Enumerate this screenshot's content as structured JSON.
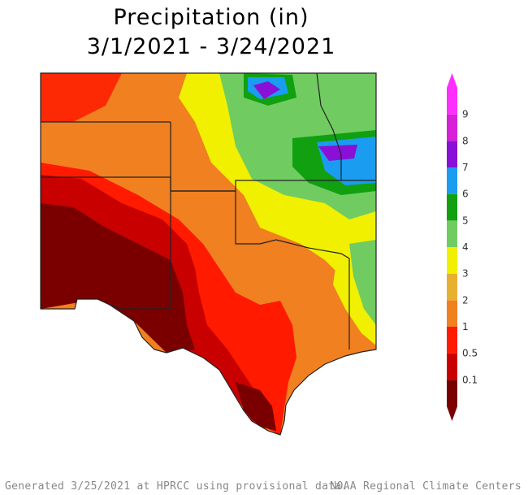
{
  "title_line1": "Precipitation (in)",
  "title_line2": "3/1/2021 - 3/24/2021",
  "legend": {
    "labels": [
      "0.1",
      "0.5",
      "1",
      "2",
      "3",
      "4",
      "5",
      "6",
      "7",
      "8",
      "9"
    ],
    "colors": [
      "#7a0000",
      "#c90000",
      "#ff1a00",
      "#f08020",
      "#e8b030",
      "#f0f000",
      "#70cc60",
      "#10a010",
      "#1a9cf0",
      "#8a10d8",
      "#d820d8",
      "#ff30ff"
    ]
  },
  "footer_left": "Generated 3/25/2021 at HPRCC using provisional data.",
  "footer_right": "NOAA Regional Climate Centers"
}
